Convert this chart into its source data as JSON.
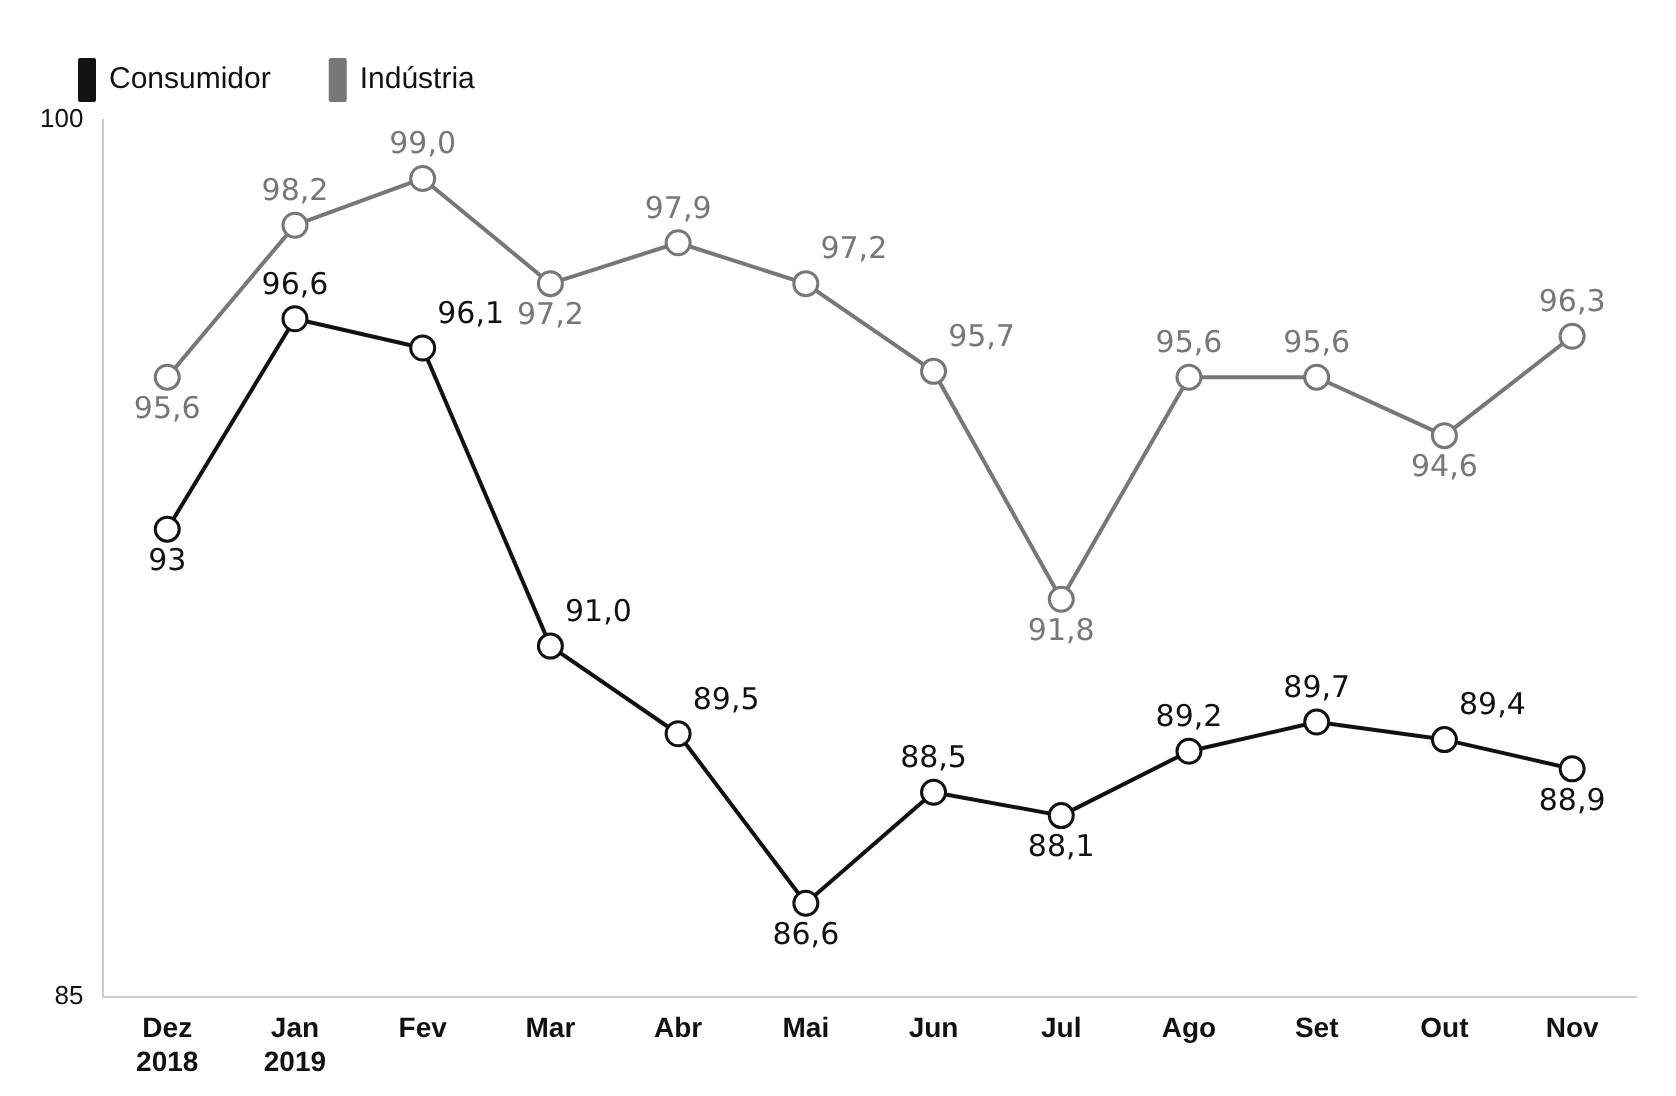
{
  "chart_data": {
    "type": "line",
    "categories": [
      "Dez 2018",
      "Jan 2019",
      "Fev",
      "Mar",
      "Abr",
      "Mai",
      "Jun",
      "Jul",
      "Ago",
      "Set",
      "Out",
      "Nov"
    ],
    "series": [
      {
        "name": "Consumidor",
        "color": "#111111",
        "values": [
          93,
          96.6,
          96.1,
          91.0,
          89.5,
          86.6,
          88.5,
          88.1,
          89.2,
          89.7,
          89.4,
          88.9
        ],
        "value_labels": [
          "93",
          "96,6",
          "96,1",
          "91,0",
          "89,5",
          "86,6",
          "88,5",
          "88,1",
          "89,2",
          "89,7",
          "89,4",
          "88,9"
        ]
      },
      {
        "name": "Indústria",
        "color": "#777777",
        "values": [
          95.6,
          98.2,
          99.0,
          97.2,
          97.9,
          97.2,
          95.7,
          91.8,
          95.6,
          95.6,
          94.6,
          96.3
        ],
        "value_labels": [
          "95,6",
          "98,2",
          "99,0",
          "97,2",
          "97,9",
          "97,2",
          "95,7",
          "91,8",
          "95,6",
          "95,6",
          "94,6",
          "96,3"
        ]
      }
    ],
    "ylim": [
      85,
      100
    ],
    "yticks": [
      85,
      100
    ],
    "grid": false,
    "legend": "top left",
    "marker": "circle",
    "line_style": "solid"
  }
}
